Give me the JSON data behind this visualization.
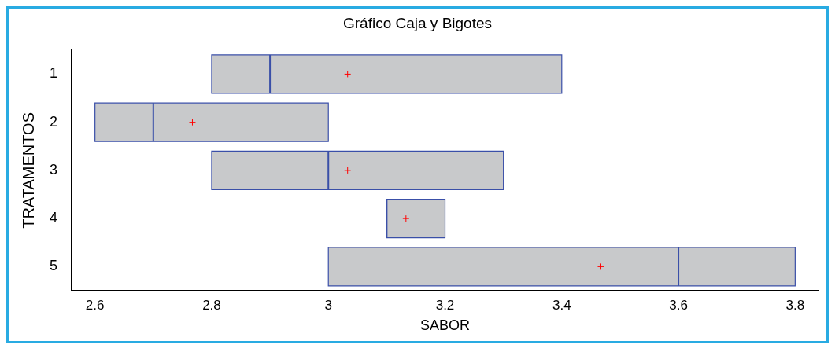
{
  "chart_data": {
    "type": "box",
    "title": "Gráfico Caja y Bigotes",
    "xlabel": "SABOR",
    "ylabel": "TRATAMENTOS",
    "orientation": "horizontal",
    "categories": [
      "1",
      "2",
      "3",
      "4",
      "5"
    ],
    "color": "#c8c9cb",
    "boxes": [
      {
        "low": 2.8,
        "q1": 2.8,
        "median": 2.9,
        "q3": 3.4,
        "high": 3.4,
        "mean": 3.033
      },
      {
        "low": 2.6,
        "q1": 2.6,
        "median": 2.7,
        "q3": 3.0,
        "high": 3.0,
        "mean": 2.767
      },
      {
        "low": 2.8,
        "q1": 2.8,
        "median": 3.0,
        "q3": 3.3,
        "high": 3.3,
        "mean": 3.033
      },
      {
        "low": 3.1,
        "q1": 3.1,
        "median": 3.1,
        "q3": 3.2,
        "high": 3.2,
        "mean": 3.133
      },
      {
        "low": 3.0,
        "q1": 3.0,
        "median": 3.6,
        "q3": 3.8,
        "high": 3.8,
        "mean": 3.467
      }
    ],
    "xlim": [
      2.56,
      3.84
    ],
    "xticks": [
      2.6,
      2.8,
      {
        "value": 3,
        "label": "3"
      },
      3.2,
      3.4,
      3.6,
      3.8
    ],
    "grid": false,
    "legend": false
  }
}
